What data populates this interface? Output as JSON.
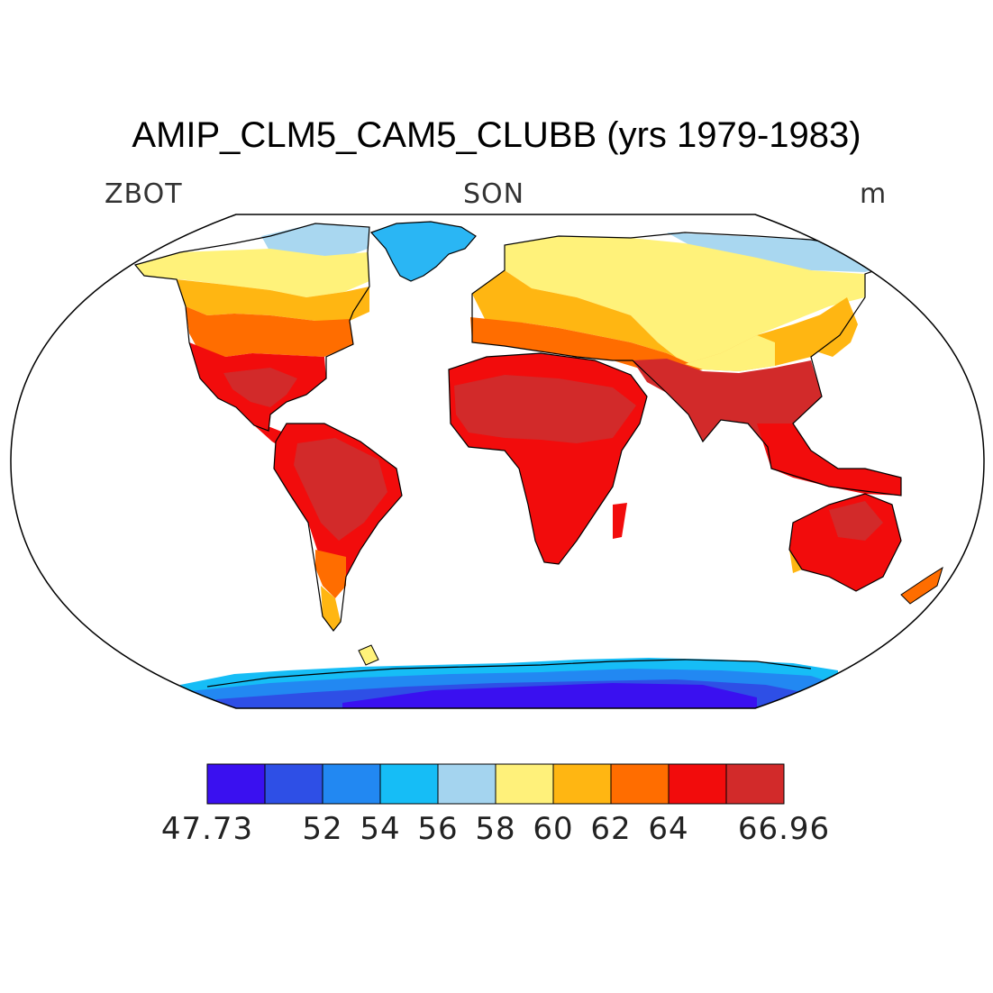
{
  "title": "AMIP_CLM5_CAM5_CLUBB (yrs 1979-1983)",
  "variable": "ZBOT",
  "season": "SON",
  "units": "m",
  "colorbar": {
    "colors": [
      "#3a10f0",
      "#2e4fe6",
      "#2288f2",
      "#16bdf6",
      "#a4d4ef",
      "#fff17a",
      "#ffb612",
      "#ff6d00",
      "#f20c0c",
      "#d22a2a"
    ],
    "labels": [
      "47.73",
      "52",
      "54",
      "56",
      "58",
      "60",
      "62",
      "64",
      "66.96"
    ]
  }
}
